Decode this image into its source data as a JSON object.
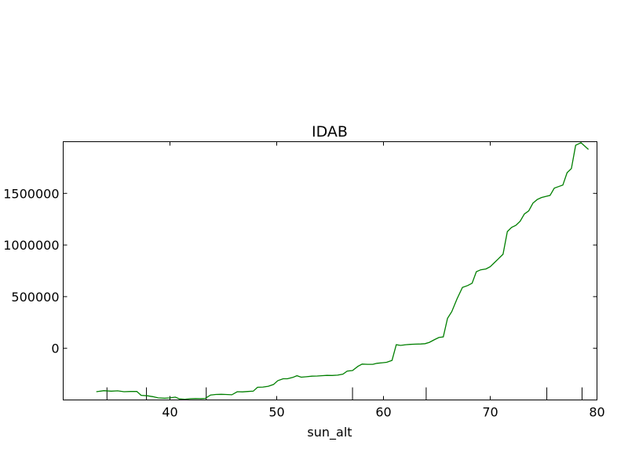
{
  "chart_data": {
    "type": "line",
    "title": "IDAB",
    "xlabel": "sun_alt",
    "ylabel": "",
    "xlim": [
      30,
      80
    ],
    "ylim": [
      -500000,
      2000000
    ],
    "xticks": [
      40,
      50,
      60,
      70,
      80
    ],
    "yticks": [
      0,
      500000,
      1000000,
      1500000
    ],
    "ytick_labels": [
      "0",
      "500000",
      "1000000",
      "1500000"
    ],
    "xtick_labels": [
      "40",
      "50",
      "60",
      "70",
      "80"
    ],
    "grid": false,
    "line_color": "#007f00",
    "secondary_x_ticks": [
      34.1,
      37.8,
      43.4,
      57.1,
      64.0,
      75.3,
      78.6
    ],
    "series": [
      {
        "values": [
          [
            33.1,
            -420000
          ],
          [
            33.8,
            -410000
          ],
          [
            34.5,
            -415000
          ],
          [
            35.1,
            -412000
          ],
          [
            35.7,
            -420000
          ],
          [
            36.3,
            -418000
          ],
          [
            36.9,
            -417000
          ],
          [
            37.3,
            -455000
          ],
          [
            37.9,
            -460000
          ],
          [
            38.4,
            -468000
          ],
          [
            38.9,
            -480000
          ],
          [
            39.5,
            -483000
          ],
          [
            40.0,
            -480000
          ],
          [
            40.5,
            -473000
          ],
          [
            40.9,
            -490000
          ],
          [
            41.4,
            -493000
          ],
          [
            41.9,
            -488000
          ],
          [
            42.4,
            -486000
          ],
          [
            42.9,
            -487000
          ],
          [
            43.3,
            -485000
          ],
          [
            43.8,
            -452000
          ],
          [
            44.3,
            -447000
          ],
          [
            44.8,
            -445000
          ],
          [
            45.2,
            -447000
          ],
          [
            45.8,
            -450000
          ],
          [
            46.3,
            -420000
          ],
          [
            46.8,
            -422000
          ],
          [
            47.3,
            -418000
          ],
          [
            47.8,
            -415000
          ],
          [
            48.2,
            -378000
          ],
          [
            48.7,
            -375000
          ],
          [
            49.2,
            -368000
          ],
          [
            49.7,
            -350000
          ],
          [
            50.1,
            -313000
          ],
          [
            50.6,
            -295000
          ],
          [
            51.0,
            -295000
          ],
          [
            51.5,
            -282000
          ],
          [
            51.9,
            -265000
          ],
          [
            52.3,
            -280000
          ],
          [
            52.8,
            -275000
          ],
          [
            53.3,
            -270000
          ],
          [
            53.8,
            -268000
          ],
          [
            54.2,
            -265000
          ],
          [
            54.7,
            -262000
          ],
          [
            55.2,
            -263000
          ],
          [
            55.7,
            -260000
          ],
          [
            56.2,
            -250000
          ],
          [
            56.6,
            -220000
          ],
          [
            57.1,
            -215000
          ],
          [
            57.6,
            -175000
          ],
          [
            58.0,
            -153000
          ],
          [
            58.5,
            -155000
          ],
          [
            59.0,
            -155000
          ],
          [
            59.4,
            -145000
          ],
          [
            59.9,
            -140000
          ],
          [
            60.3,
            -135000
          ],
          [
            60.8,
            -117000
          ],
          [
            61.2,
            35000
          ],
          [
            61.6,
            28000
          ],
          [
            62.1,
            35000
          ],
          [
            62.5,
            38000
          ],
          [
            63.0,
            40000
          ],
          [
            63.5,
            42000
          ],
          [
            63.9,
            45000
          ],
          [
            64.3,
            58000
          ],
          [
            64.8,
            85000
          ],
          [
            65.2,
            105000
          ],
          [
            65.6,
            110000
          ],
          [
            66.0,
            290000
          ],
          [
            66.4,
            355000
          ],
          [
            66.9,
            480000
          ],
          [
            67.4,
            590000
          ],
          [
            67.9,
            608000
          ],
          [
            68.3,
            630000
          ],
          [
            68.7,
            742000
          ],
          [
            69.1,
            760000
          ],
          [
            69.6,
            768000
          ],
          [
            70.0,
            790000
          ],
          [
            70.4,
            830000
          ],
          [
            70.8,
            870000
          ],
          [
            71.2,
            910000
          ],
          [
            71.6,
            1130000
          ],
          [
            72.0,
            1170000
          ],
          [
            72.4,
            1190000
          ],
          [
            72.8,
            1230000
          ],
          [
            73.2,
            1300000
          ],
          [
            73.6,
            1330000
          ],
          [
            74.0,
            1405000
          ],
          [
            74.4,
            1440000
          ],
          [
            74.8,
            1460000
          ],
          [
            75.2,
            1470000
          ],
          [
            75.6,
            1480000
          ],
          [
            76.0,
            1550000
          ],
          [
            76.4,
            1565000
          ],
          [
            76.8,
            1580000
          ],
          [
            77.2,
            1700000
          ],
          [
            77.6,
            1740000
          ],
          [
            78.0,
            1965000
          ],
          [
            78.5,
            1990000
          ],
          [
            79.2,
            1925000
          ]
        ]
      }
    ]
  }
}
